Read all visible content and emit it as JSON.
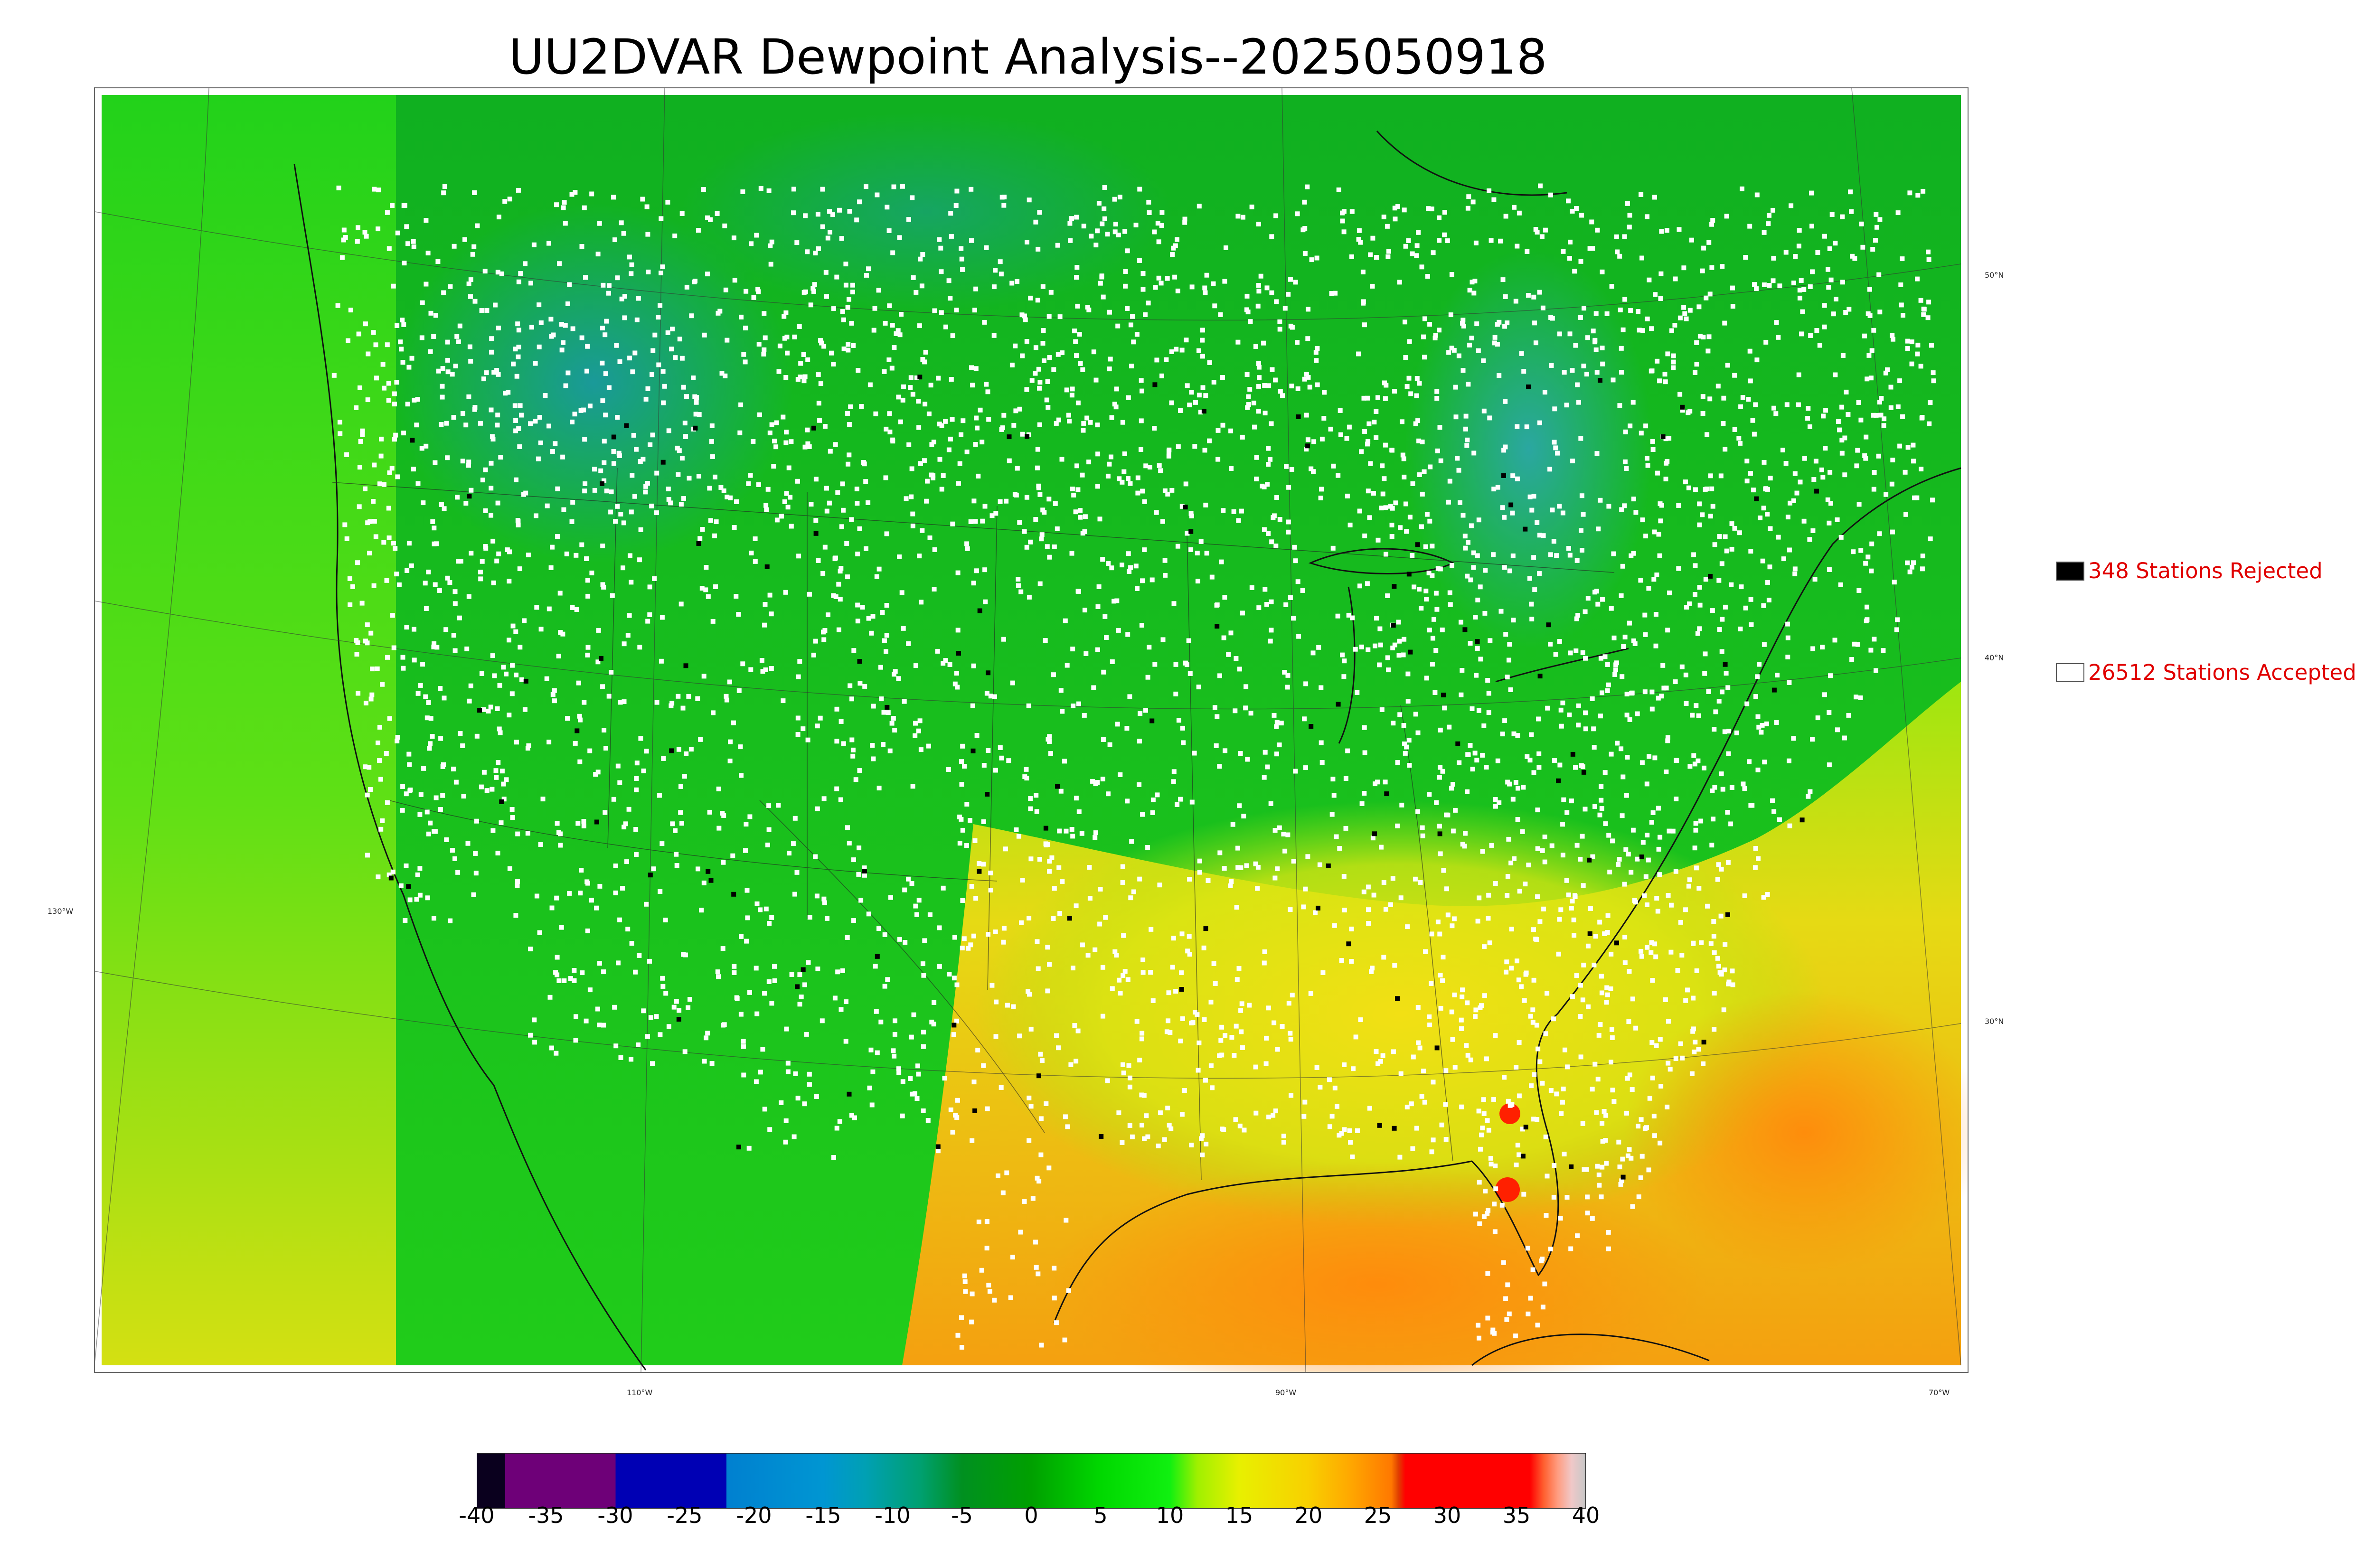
{
  "title": "UU2DVAR Dewpoint Analysis--2025050918",
  "map": {
    "lat_labels": [
      "50°N",
      "40°N",
      "30°N"
    ],
    "lon_labels": [
      "130°W",
      "110°W",
      "90°W",
      "70°W"
    ],
    "field_colors": {
      "canada_north": "#18b82a",
      "plains": "#1fcb1c",
      "gulf_south": "#e9cc18",
      "gulf_ocean": "#f5a511",
      "atlantic": "#f3b714",
      "pacific_north": "#27d91b",
      "pacific_south": "#b6e90f",
      "dry_teal": "#1d9e80",
      "florida_red": "#ff2200"
    }
  },
  "legend": {
    "rejected_label": "348 Stations Rejected",
    "accepted_label": "26512 Stations Accepted",
    "rejected_color": "#000000",
    "accepted_color": "#ffffff",
    "text_color": "#e00000"
  },
  "colorbar": {
    "ticks": [
      "-40",
      "-35",
      "-30",
      "-25",
      "-20",
      "-15",
      "-10",
      "-5",
      "0",
      "5",
      "10",
      "15",
      "20",
      "25",
      "30",
      "35",
      "40"
    ],
    "min": -40,
    "max": 40,
    "stops": [
      {
        "v": -40,
        "c": "#0a001e"
      },
      {
        "v": -38,
        "c": "#0a001e"
      },
      {
        "v": -38,
        "c": "#6e0078"
      },
      {
        "v": -30,
        "c": "#6e0078"
      },
      {
        "v": -30,
        "c": "#0000b4"
      },
      {
        "v": -22,
        "c": "#0000b4"
      },
      {
        "v": -22,
        "c": "#0080d0"
      },
      {
        "v": -15,
        "c": "#0096d2"
      },
      {
        "v": -12,
        "c": "#00a0b4"
      },
      {
        "v": -8,
        "c": "#00a070"
      },
      {
        "v": -5,
        "c": "#009020"
      },
      {
        "v": 0,
        "c": "#00a000"
      },
      {
        "v": 5,
        "c": "#00d800"
      },
      {
        "v": 10,
        "c": "#10f010"
      },
      {
        "v": 12,
        "c": "#a0f000"
      },
      {
        "v": 15,
        "c": "#e8f000"
      },
      {
        "v": 20,
        "c": "#f8d000"
      },
      {
        "v": 23,
        "c": "#ffa800"
      },
      {
        "v": 26,
        "c": "#ff7800"
      },
      {
        "v": 26.5,
        "c": "#e04000"
      },
      {
        "v": 27,
        "c": "#ff0000"
      },
      {
        "v": 36,
        "c": "#ff0000"
      },
      {
        "v": 37,
        "c": "#ff6030"
      },
      {
        "v": 38,
        "c": "#ff9c80"
      },
      {
        "v": 39,
        "c": "#f0c8c8"
      },
      {
        "v": 40,
        "c": "#c8c8c8"
      }
    ]
  }
}
